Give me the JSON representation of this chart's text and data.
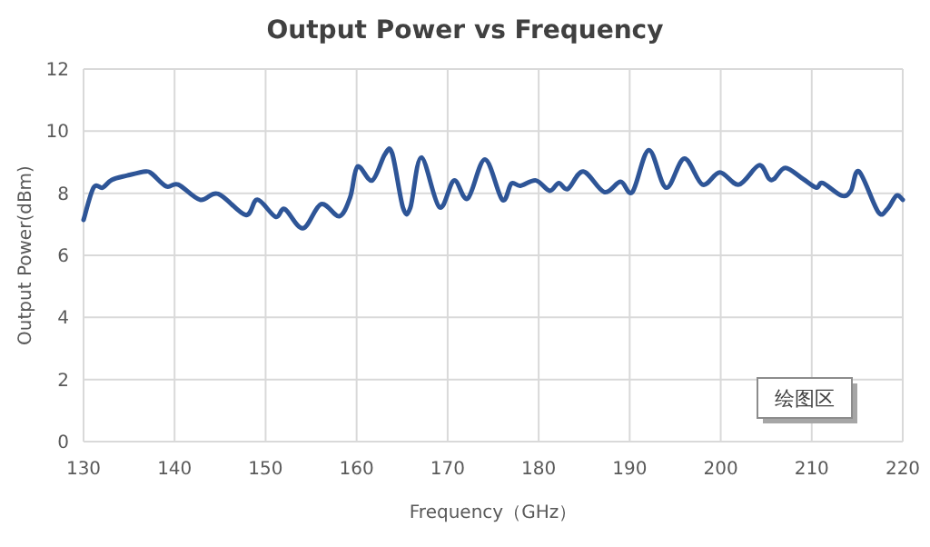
{
  "chart_data": {
    "type": "line",
    "title": "Output Power vs Frequency",
    "xlabel": "Frequency（GHz）",
    "ylabel": "Output Power(dBm)",
    "annotations": [
      "绘图区"
    ],
    "x": [
      130,
      131.1,
      132.1,
      133.1,
      134.8,
      136.8,
      137.5,
      139.1,
      140.4,
      142.8,
      144.8,
      147.8,
      149.1,
      151.1,
      152.1,
      154.1,
      156.1,
      158.1,
      159.3,
      160.1,
      161.7,
      163.1,
      163.9,
      165.1,
      165.9,
      167.1,
      169.1,
      170.7,
      172.2,
      174.1,
      176.0,
      177.0,
      178.0,
      179.7,
      181.2,
      182.2,
      183.2,
      184.9,
      187.2,
      189.0,
      190.3,
      192.1,
      194.0,
      196.0,
      198.0,
      199.9,
      202.0,
      204.2,
      205.3,
      205.9,
      207.1,
      209.0,
      210.5,
      211.2,
      213.3,
      214.3,
      215.2,
      217.3,
      218.3,
      219.3,
      220
    ],
    "series": [
      {
        "color": "#2e5597",
        "values": [
          7.14,
          8.18,
          8.18,
          8.43,
          8.57,
          8.7,
          8.63,
          8.22,
          8.28,
          7.79,
          7.98,
          7.3,
          7.79,
          7.24,
          7.49,
          6.87,
          7.65,
          7.26,
          7.88,
          8.86,
          8.41,
          9.25,
          9.29,
          7.53,
          7.53,
          9.15,
          7.55,
          8.41,
          7.83,
          9.09,
          7.79,
          8.31,
          8.24,
          8.41,
          8.08,
          8.33,
          8.14,
          8.7,
          8.04,
          8.37,
          8.04,
          9.39,
          8.18,
          9.12,
          8.28,
          8.67,
          8.28,
          8.9,
          8.47,
          8.47,
          8.82,
          8.47,
          8.18,
          8.33,
          7.92,
          8.08,
          8.7,
          7.4,
          7.49,
          7.92,
          7.79
        ]
      }
    ],
    "xlim": [
      130,
      220
    ],
    "ylim": [
      0,
      12
    ],
    "xticks": [
      130,
      140,
      150,
      160,
      170,
      180,
      190,
      200,
      210,
      220
    ],
    "yticks": [
      0,
      2,
      4,
      6,
      8,
      10,
      12
    ],
    "grid": true
  }
}
